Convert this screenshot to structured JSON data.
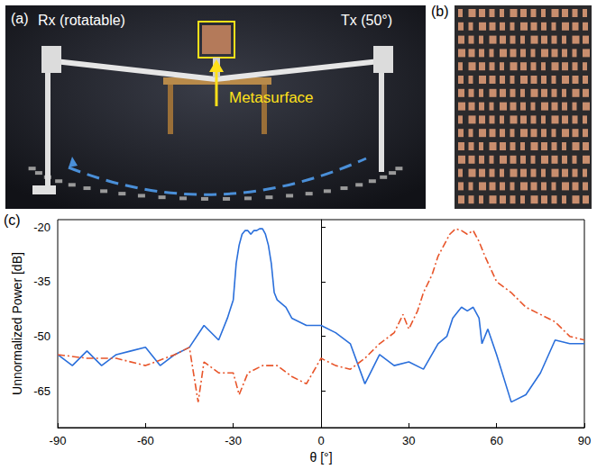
{
  "panels": [
    {
      "letter": "(a)",
      "labels": {
        "receiver": "Rx (rotatable)",
        "transmitter": "Tx (50°)",
        "sample": "Metasurface"
      }
    },
    {
      "letter": "(b)"
    },
    {
      "letter": "(c)"
    }
  ],
  "chart_data": {
    "type": "line",
    "x_label": "θ [°]",
    "y_label": "Unnormalized Power [dB]",
    "xlim": [
      -90,
      90
    ],
    "xticks": [
      -90,
      -60,
      -30,
      0,
      30,
      60,
      90
    ],
    "ylim": [
      -75,
      -18
    ],
    "yticks": [
      -65,
      -50,
      -35,
      -20
    ],
    "grid": false,
    "series": [
      {
        "color": "#2a6fdb",
        "line_style": "solid",
        "x": [
          -90,
          -85,
          -80,
          -75,
          -70,
          -65,
          -60,
          -55,
          -50,
          -45,
          -40,
          -35,
          -32,
          -30,
          -29,
          -28,
          -27,
          -26,
          -25,
          -24,
          -23,
          -22,
          -21,
          -20,
          -19,
          -18,
          -17,
          -16,
          -15,
          -12,
          -10,
          -5,
          0,
          5,
          10,
          15,
          20,
          25,
          30,
          35,
          40,
          43,
          45,
          47,
          48,
          50,
          52,
          54,
          55,
          57,
          60,
          65,
          70,
          75,
          80,
          85,
          90
        ],
        "values": [
          -55,
          -58,
          -54,
          -58,
          -55,
          -54,
          -53,
          -58,
          -55,
          -53,
          -47,
          -51,
          -45,
          -40,
          -30,
          -25,
          -22,
          -21,
          -21,
          -22,
          -21,
          -21,
          -20.5,
          -20.5,
          -22,
          -25,
          -30,
          -38,
          -40,
          -42,
          -45,
          -47,
          -47,
          -49,
          -52,
          -63,
          -55,
          -58,
          -57,
          -59,
          -52,
          -50,
          -45,
          -43,
          -42,
          -43,
          -42,
          -45,
          -52,
          -48,
          -55,
          -68,
          -66,
          -60,
          -51,
          -52,
          -52
        ]
      },
      {
        "color": "#e8552a",
        "line_style": "dashdot",
        "x": [
          -90,
          -80,
          -70,
          -60,
          -50,
          -45,
          -42,
          -40,
          -35,
          -30,
          -28,
          -25,
          -20,
          -15,
          -10,
          -5,
          0,
          5,
          10,
          15,
          20,
          25,
          28,
          30,
          33,
          35,
          38,
          40,
          42,
          44,
          46,
          48,
          50,
          52,
          54,
          56,
          60,
          65,
          70,
          75,
          80,
          85,
          90
        ],
        "values": [
          -55,
          -56,
          -56,
          -58,
          -55,
          -53,
          -68,
          -57,
          -60,
          -60,
          -66,
          -60,
          -58,
          -58,
          -61,
          -63,
          -56,
          -58,
          -59,
          -56,
          -52,
          -49,
          -44,
          -48,
          -43,
          -38,
          -33,
          -28,
          -25,
          -22,
          -20.5,
          -21,
          -22,
          -21,
          -24,
          -28,
          -35,
          -38,
          -42,
          -44,
          -46,
          -50,
          -51
        ]
      }
    ]
  }
}
